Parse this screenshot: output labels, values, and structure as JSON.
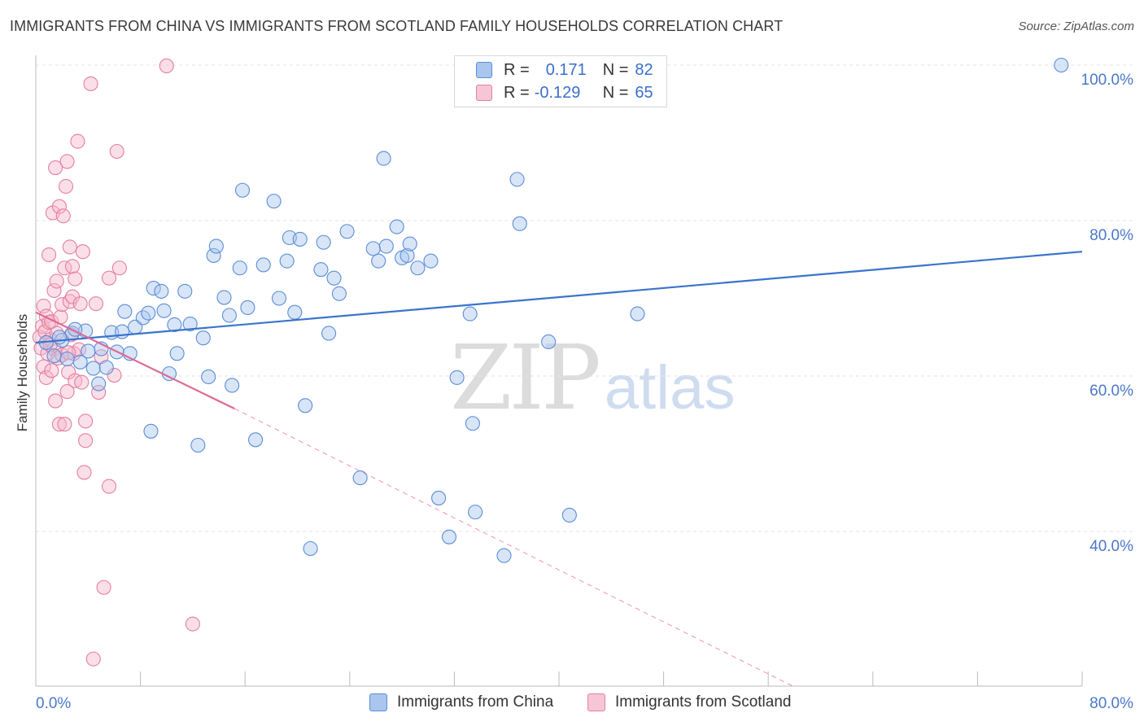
{
  "title": "IMMIGRANTS FROM CHINA VS IMMIGRANTS FROM SCOTLAND FAMILY HOUSEHOLDS CORRELATION CHART",
  "source": "Source: ZipAtlas.com",
  "watermark": {
    "zip": "ZIP",
    "atlas": "atlas"
  },
  "legend": {
    "china": {
      "r_label": "R =",
      "r_value": "0.171",
      "n_label": "N =",
      "n_value": "82"
    },
    "scotland": {
      "r_label": "R =",
      "r_value": "-0.129",
      "n_label": "N =",
      "n_value": "65"
    }
  },
  "colors": {
    "china_fill": "#a9c6ee",
    "china_stroke": "#5b8dd8",
    "china_line": "#3a74cc",
    "scotland_fill": "#f7b8cb",
    "scotland_stroke": "#e57fa0",
    "scotland_line": "#e06890",
    "axis_text": "#4a78c8",
    "grid": "#e3e3e3"
  },
  "chart_data": {
    "type": "scatter",
    "title": "IMMIGRANTS FROM CHINA VS IMMIGRANTS FROM SCOTLAND FAMILY HOUSEHOLDS CORRELATION CHART",
    "xlabel": "",
    "ylabel": "Family Households",
    "xlim": [
      0,
      80
    ],
    "ylim": [
      20,
      102
    ],
    "x_tick_labels": [
      "0.0%",
      "80.0%"
    ],
    "y_tick_labels": [
      {
        "value": 100,
        "label": "100.0%"
      },
      {
        "value": 80,
        "label": "80.0%"
      },
      {
        "value": 60,
        "label": "60.0%"
      },
      {
        "value": 40,
        "label": "40.0%"
      }
    ],
    "x_minor_ticks": [
      8,
      16,
      24,
      32,
      40,
      48,
      56,
      64,
      72,
      80
    ],
    "series": [
      {
        "name": "Immigrants from China",
        "trend": {
          "x": [
            0,
            80
          ],
          "y": [
            64.3,
            76.0
          ],
          "dashed": false
        },
        "points": [
          [
            0.8,
            64.3
          ],
          [
            1.4,
            62.6
          ],
          [
            2.0,
            64.6
          ],
          [
            2.8,
            65.5
          ],
          [
            3.4,
            61.8
          ],
          [
            3.8,
            65.8
          ],
          [
            4.4,
            61.0
          ],
          [
            4.8,
            59.0
          ],
          [
            5.0,
            63.5
          ],
          [
            5.4,
            61.1
          ],
          [
            5.8,
            65.6
          ],
          [
            6.2,
            63.1
          ],
          [
            6.6,
            65.7
          ],
          [
            6.8,
            68.3
          ],
          [
            7.2,
            62.9
          ],
          [
            7.6,
            66.3
          ],
          [
            8.2,
            67.5
          ],
          [
            8.6,
            68.1
          ],
          [
            8.8,
            52.9
          ],
          [
            9.0,
            71.3
          ],
          [
            9.6,
            70.9
          ],
          [
            9.8,
            68.4
          ],
          [
            10.2,
            60.3
          ],
          [
            10.6,
            66.6
          ],
          [
            10.8,
            62.9
          ],
          [
            11.4,
            70.9
          ],
          [
            11.8,
            66.7
          ],
          [
            12.4,
            51.1
          ],
          [
            12.8,
            64.9
          ],
          [
            13.2,
            59.9
          ],
          [
            13.6,
            75.5
          ],
          [
            13.8,
            76.7
          ],
          [
            14.4,
            70.1
          ],
          [
            14.8,
            67.8
          ],
          [
            15.0,
            58.8
          ],
          [
            15.6,
            73.9
          ],
          [
            15.8,
            83.9
          ],
          [
            16.2,
            68.8
          ],
          [
            16.8,
            51.8
          ],
          [
            17.4,
            74.3
          ],
          [
            18.2,
            82.5
          ],
          [
            18.6,
            70.0
          ],
          [
            19.2,
            74.8
          ],
          [
            19.4,
            77.8
          ],
          [
            19.8,
            68.2
          ],
          [
            20.2,
            77.6
          ],
          [
            20.6,
            56.2
          ],
          [
            21.8,
            73.7
          ],
          [
            22.0,
            77.2
          ],
          [
            22.4,
            65.5
          ],
          [
            22.8,
            72.6
          ],
          [
            23.2,
            70.6
          ],
          [
            23.8,
            78.6
          ],
          [
            24.8,
            46.9
          ],
          [
            25.8,
            76.4
          ],
          [
            26.2,
            74.8
          ],
          [
            26.6,
            88.0
          ],
          [
            26.8,
            76.7
          ],
          [
            27.6,
            79.2
          ],
          [
            28.0,
            75.2
          ],
          [
            28.4,
            75.5
          ],
          [
            28.6,
            77.0
          ],
          [
            29.2,
            73.9
          ],
          [
            30.2,
            74.8
          ],
          [
            30.8,
            44.3
          ],
          [
            31.6,
            39.3
          ],
          [
            32.2,
            59.8
          ],
          [
            33.2,
            68.0
          ],
          [
            33.4,
            53.9
          ],
          [
            33.6,
            42.5
          ],
          [
            35.8,
            36.9
          ],
          [
            36.8,
            85.3
          ],
          [
            37.0,
            79.6
          ],
          [
            39.2,
            64.4
          ],
          [
            40.8,
            42.1
          ],
          [
            46.0,
            68.0
          ],
          [
            78.4,
            100.0
          ],
          [
            21.0,
            37.8
          ],
          [
            1.8,
            65.0
          ],
          [
            2.4,
            62.2
          ],
          [
            3.0,
            66.0
          ],
          [
            4.0,
            63.2
          ]
        ]
      },
      {
        "name": "Immigrants from Scotland",
        "trend": {
          "x": [
            0,
            15.2
          ],
          "y": [
            68.2,
            55.8
          ],
          "dashed": false
        },
        "trend_ext": {
          "x": [
            15.2,
            58.0
          ],
          "y": [
            55.8,
            20.0
          ],
          "dashed": true
        },
        "points": [
          [
            0.3,
            65.0
          ],
          [
            0.4,
            63.6
          ],
          [
            0.5,
            66.4
          ],
          [
            0.6,
            69.0
          ],
          [
            0.6,
            61.2
          ],
          [
            0.7,
            65.7
          ],
          [
            0.8,
            67.7
          ],
          [
            0.8,
            59.8
          ],
          [
            0.9,
            62.9
          ],
          [
            1.0,
            75.6
          ],
          [
            1.0,
            66.9
          ],
          [
            1.1,
            64.7
          ],
          [
            1.2,
            67.0
          ],
          [
            1.2,
            60.7
          ],
          [
            1.3,
            81.0
          ],
          [
            1.4,
            63.5
          ],
          [
            1.4,
            71.0
          ],
          [
            1.5,
            86.8
          ],
          [
            1.5,
            56.8
          ],
          [
            1.6,
            65.5
          ],
          [
            1.6,
            72.2
          ],
          [
            1.7,
            62.3
          ],
          [
            1.8,
            81.8
          ],
          [
            1.8,
            53.8
          ],
          [
            1.9,
            67.6
          ],
          [
            2.0,
            69.2
          ],
          [
            2.0,
            62.7
          ],
          [
            2.1,
            80.6
          ],
          [
            2.2,
            53.8
          ],
          [
            2.2,
            73.9
          ],
          [
            2.3,
            84.4
          ],
          [
            2.4,
            58.0
          ],
          [
            2.4,
            87.6
          ],
          [
            2.5,
            60.5
          ],
          [
            2.6,
            69.6
          ],
          [
            2.6,
            76.6
          ],
          [
            2.7,
            65.3
          ],
          [
            2.8,
            70.2
          ],
          [
            2.8,
            74.1
          ],
          [
            2.9,
            62.9
          ],
          [
            3.0,
            72.5
          ],
          [
            3.0,
            59.4
          ],
          [
            3.2,
            90.2
          ],
          [
            3.3,
            63.4
          ],
          [
            3.4,
            69.3
          ],
          [
            3.5,
            59.2
          ],
          [
            3.6,
            76.0
          ],
          [
            3.7,
            47.6
          ],
          [
            3.8,
            54.2
          ],
          [
            3.8,
            51.7
          ],
          [
            4.2,
            97.6
          ],
          [
            4.6,
            69.3
          ],
          [
            4.8,
            57.9
          ],
          [
            5.0,
            62.5
          ],
          [
            5.2,
            32.8
          ],
          [
            5.6,
            45.8
          ],
          [
            5.6,
            72.6
          ],
          [
            6.0,
            60.1
          ],
          [
            6.2,
            88.9
          ],
          [
            6.4,
            73.9
          ],
          [
            10.0,
            99.9
          ],
          [
            12.0,
            28.1
          ],
          [
            4.4,
            23.6
          ],
          [
            1.1,
            64.0
          ],
          [
            2.5,
            63.0
          ]
        ]
      }
    ]
  },
  "bottom_legend": {
    "china": "Immigrants from China",
    "scotland": "Immigrants from Scotland"
  }
}
